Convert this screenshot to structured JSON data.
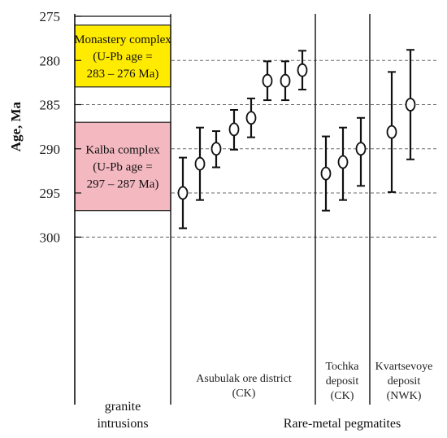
{
  "chart_data": {
    "type": "scatter",
    "title": "",
    "ylabel": "Age, Ma",
    "ylim": [
      275,
      300
    ],
    "y_axis_inverted": true,
    "yticks": [
      275,
      280,
      285,
      290,
      295,
      300
    ],
    "grid": "horizontal dashed",
    "granite_intrusions": {
      "label": "granite intrusions",
      "boxes": [
        {
          "name": "monastery",
          "lines": [
            "Monastery complex",
            "(U-Pb age =",
            "283 – 276 Ma)"
          ],
          "range": [
            276,
            283
          ],
          "color": "#ffeb00"
        },
        {
          "name": "kalba",
          "lines": [
            "Kalba complex",
            "(U-Pb age =",
            "297 – 287 Ma)"
          ],
          "range": [
            287,
            297
          ],
          "color": "#f4b8c1"
        }
      ]
    },
    "pegmatites": {
      "label": "Rare-metal pegmatites",
      "groups": [
        {
          "name": "asubulak",
          "lines": [
            "Asubulak ore district",
            "(CK)"
          ],
          "points": [
            {
              "age": 295.0,
              "low": 291.0,
              "high": 299.0
            },
            {
              "age": 291.7,
              "low": 287.6,
              "high": 295.8
            },
            {
              "age": 290.0,
              "low": 288.0,
              "high": 292.1
            },
            {
              "age": 287.8,
              "low": 285.6,
              "high": 290.1
            },
            {
              "age": 286.5,
              "low": 284.3,
              "high": 288.7
            },
            {
              "age": 282.3,
              "low": 280.1,
              "high": 284.5
            },
            {
              "age": 282.3,
              "low": 280.1,
              "high": 284.5
            },
            {
              "age": 281.1,
              "low": 278.9,
              "high": 283.3
            }
          ]
        },
        {
          "name": "tochka",
          "lines": [
            "Tochka",
            "deposit",
            "(CK)"
          ],
          "points": [
            {
              "age": 292.8,
              "low": 288.6,
              "high": 297.0
            },
            {
              "age": 291.5,
              "low": 287.6,
              "high": 295.8
            },
            {
              "age": 290.0,
              "low": 286.5,
              "high": 294.2
            }
          ]
        },
        {
          "name": "kvartsevoye",
          "lines": [
            "Kvartsevoye",
            "deposit",
            "(NWK)"
          ],
          "points": [
            {
              "age": 288.1,
              "low": 281.3,
              "high": 294.9
            },
            {
              "age": 285.0,
              "low": 278.8,
              "high": 291.2
            }
          ]
        }
      ]
    }
  }
}
